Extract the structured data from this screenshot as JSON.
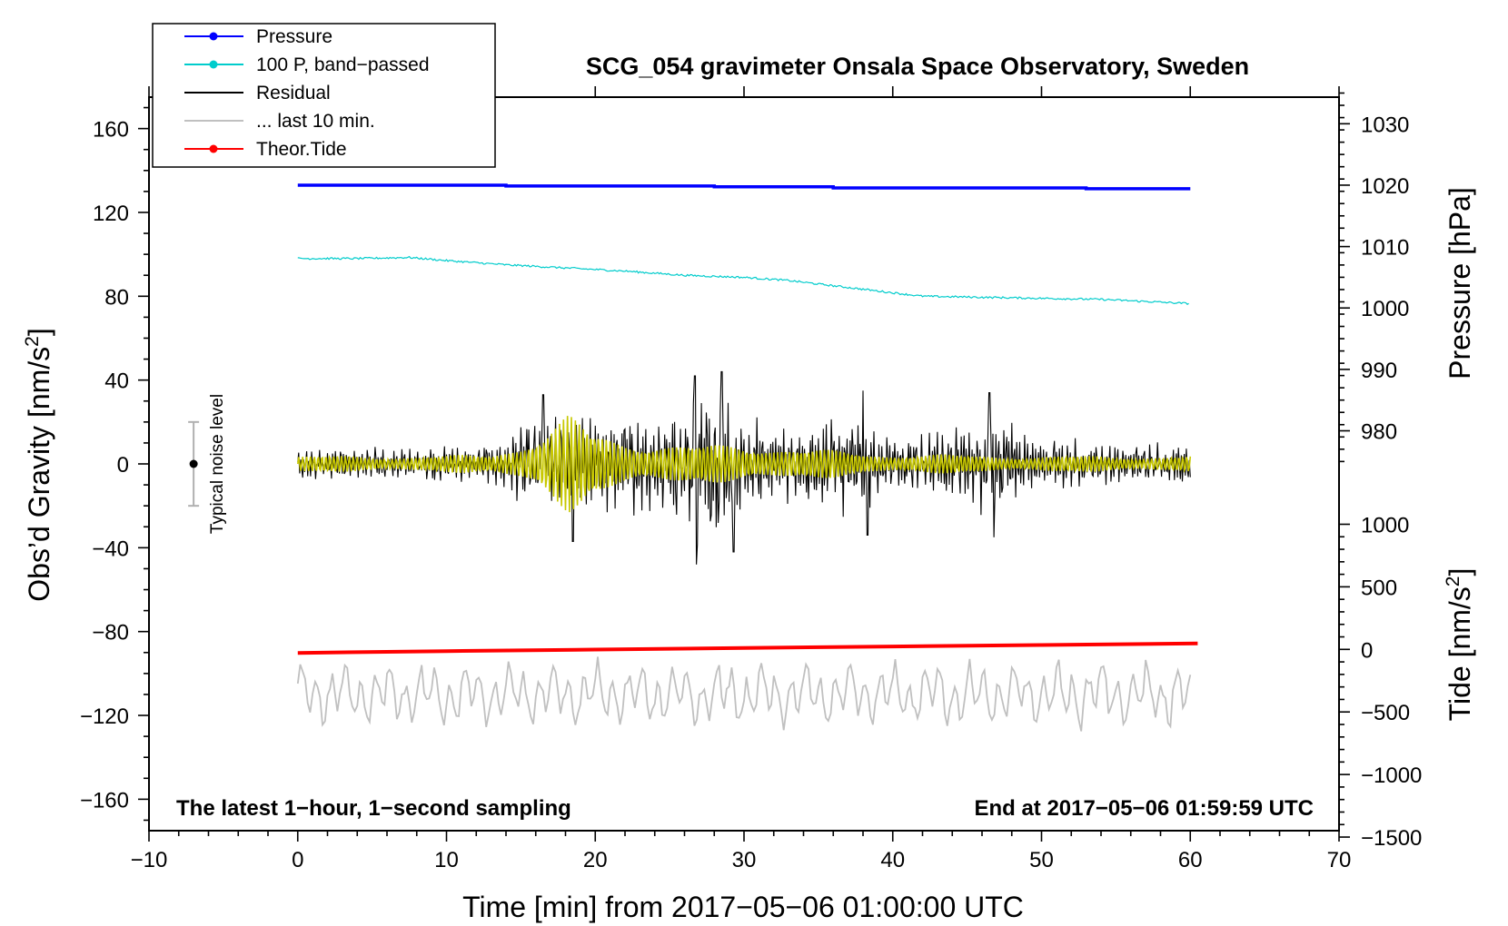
{
  "chart_data": {
    "type": "line",
    "title": "SCG_054 gravimeter Onsala Space Observatory, Sweden",
    "xlabel": "Time [min] from 2017−05−06 01:00:00 UTC",
    "ylabel": "Obs’d Gravity [nm/s",
    "ylabel_sup": "2",
    "ylabel_close": "]",
    "y_right_pressure_label": "Pressure [hPa]",
    "y_right_tide_label": "Tide [nm/s",
    "y_right_tide_sup": "2",
    "y_right_tide_close": "]",
    "xlim": [
      -10,
      70
    ],
    "ylim": [
      -175,
      175
    ],
    "x_ticks": [
      -10,
      0,
      10,
      20,
      30,
      40,
      50,
      60,
      70
    ],
    "x_tick_labels": [
      "−10",
      "0",
      "10",
      "20",
      "30",
      "40",
      "50",
      "60",
      "70"
    ],
    "y_ticks": [
      160,
      120,
      80,
      40,
      0,
      -40,
      -80,
      -120,
      -160
    ],
    "y_tick_labels": [
      "160",
      "120",
      "80",
      "40",
      "0",
      "−40",
      "−80",
      "−120",
      "−160"
    ],
    "pressure_axis": {
      "ticks": [
        1030,
        1020,
        1010,
        1000,
        990,
        980
      ],
      "tick_labels": [
        "1030",
        "1020",
        "1010",
        "1000",
        "990",
        "980"
      ],
      "gravity_at_0hPa_offset": 1030,
      "scale_hPa_to_plot": 2.93
    },
    "tide_axis": {
      "ticks": [
        1000,
        500,
        0,
        -500,
        -1000,
        -1500
      ],
      "tick_labels": [
        "1000",
        "500",
        "0",
        "−500",
        "−1000",
        "−1500"
      ],
      "plot_value_at_zero": -88.5,
      "plot_units_per_unit": 0.0597
    },
    "legend": [
      {
        "label": "Pressure",
        "color": "#0000ff",
        "marker": true
      },
      {
        "label": "100 P, band−passed",
        "color": "#00cccc",
        "marker": true
      },
      {
        "label": "Residual",
        "color": "#000000",
        "marker": false
      },
      {
        "label": "... last 10 min.",
        "color": "#c0c0c0",
        "marker": false
      },
      {
        "label": "Theor.Tide",
        "color": "#ff0000",
        "marker": true
      }
    ],
    "series": [
      {
        "name": "Pressure",
        "color": "#0000ff",
        "x": [
          0,
          14,
          14,
          28,
          28,
          36,
          36,
          53,
          53,
          60
        ],
        "y": [
          133.0,
          133.0,
          132.6,
          132.6,
          132.2,
          132.2,
          131.7,
          131.7,
          131.3,
          131.3
        ]
      },
      {
        "name": "100 P, band−passed",
        "color": "#00cccc",
        "x": [
          0,
          4,
          7.5,
          10,
          14,
          18,
          22,
          26,
          30,
          33,
          36,
          39,
          42,
          46,
          50,
          54,
          57,
          60
        ],
        "y": [
          98,
          98,
          98.5,
          97,
          95,
          93.5,
          92,
          90,
          89,
          87.5,
          85,
          82.5,
          80,
          79.5,
          79,
          78.5,
          77.5,
          76.5
        ]
      },
      {
        "name": "Theor.Tide",
        "color": "#ff0000",
        "x": [
          0,
          10,
          20,
          30,
          40,
          50,
          60.5
        ],
        "y": [
          -90.2,
          -89.3,
          -88.6,
          -87.8,
          -87.1,
          -86.4,
          -85.7
        ]
      },
      {
        "name": "Residual",
        "color": "#000000",
        "x_range": [
          0,
          60
        ],
        "samples": 900,
        "envelope": [
          {
            "x": 0,
            "amp": 7
          },
          {
            "x": 8,
            "amp": 8
          },
          {
            "x": 13,
            "amp": 10
          },
          {
            "x": 15,
            "amp": 18
          },
          {
            "x": 17,
            "amp": 25
          },
          {
            "x": 19,
            "amp": 22
          },
          {
            "x": 21,
            "amp": 25
          },
          {
            "x": 24,
            "amp": 22
          },
          {
            "x": 26,
            "amp": 33
          },
          {
            "x": 28,
            "amp": 37
          },
          {
            "x": 30,
            "amp": 25
          },
          {
            "x": 33,
            "amp": 17
          },
          {
            "x": 37,
            "amp": 25
          },
          {
            "x": 40,
            "amp": 14
          },
          {
            "x": 45,
            "amp": 20
          },
          {
            "x": 47,
            "amp": 24
          },
          {
            "x": 50,
            "amp": 13
          },
          {
            "x": 55,
            "amp": 10
          },
          {
            "x": 60,
            "amp": 9
          }
        ],
        "peaks": [
          {
            "x": 16.5,
            "y": 33
          },
          {
            "x": 18.5,
            "y": -37
          },
          {
            "x": 26.8,
            "y": -48
          },
          {
            "x": 26.7,
            "y": 42
          },
          {
            "x": 28.5,
            "y": 44
          },
          {
            "x": 29.3,
            "y": -42
          },
          {
            "x": 38,
            "y": 35
          },
          {
            "x": 46.5,
            "y": 34
          },
          {
            "x": 46.8,
            "y": -35
          },
          {
            "x": 38.3,
            "y": -34
          }
        ]
      },
      {
        "name": "Residual (filtered)",
        "color": "#c8c800",
        "x_range": [
          0,
          60
        ],
        "samples": 900,
        "envelope": [
          {
            "x": 0,
            "amp": 4
          },
          {
            "x": 10,
            "amp": 4
          },
          {
            "x": 13,
            "amp": 5
          },
          {
            "x": 15,
            "amp": 10
          },
          {
            "x": 17,
            "amp": 18
          },
          {
            "x": 18.2,
            "amp": 24
          },
          {
            "x": 20,
            "amp": 16
          },
          {
            "x": 22,
            "amp": 12
          },
          {
            "x": 26,
            "amp": 9
          },
          {
            "x": 30,
            "amp": 10
          },
          {
            "x": 35,
            "amp": 7
          },
          {
            "x": 40,
            "amp": 5
          },
          {
            "x": 50,
            "amp": 4
          },
          {
            "x": 60,
            "amp": 4
          }
        ]
      },
      {
        "name": "... last 10 min.",
        "color": "#c0c0c0",
        "x_range": [
          0,
          60
        ],
        "samples": 360,
        "center": -110,
        "amp": 17
      }
    ],
    "noise_bar": {
      "x": -7,
      "center": 0,
      "half_range": 20,
      "label": "Typical noise level"
    },
    "annotations": {
      "bottom_left": "The latest 1−hour, 1−second sampling",
      "bottom_right": "End at 2017−05−06 01:59:59 UTC"
    }
  }
}
